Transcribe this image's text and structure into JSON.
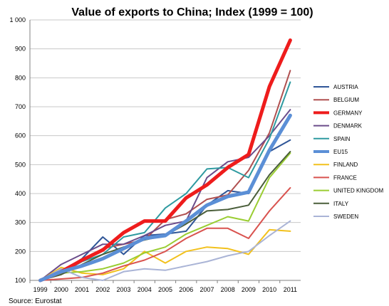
{
  "chart_data": {
    "type": "line",
    "title": "Value of exports to China; Index (1999 = 100)",
    "source": "Source: Eurostat",
    "x": [
      "1999",
      "2000",
      "2001",
      "2002",
      "2003",
      "2004",
      "2005",
      "2006",
      "2007",
      "2008",
      "2009",
      "2010",
      "2011"
    ],
    "ylim": [
      100,
      1000
    ],
    "yticks": [
      "100",
      "200",
      "300",
      "400",
      "500",
      "600",
      "700",
      "800",
      "900",
      "1 000"
    ],
    "grid": true,
    "legend_position": "right",
    "series": [
      {
        "name": "AUSTRIA",
        "color": "#2f5597",
        "width": 2,
        "values": [
          100,
          130,
          175,
          250,
          190,
          255,
          260,
          270,
          360,
          410,
          400,
          545,
          585
        ]
      },
      {
        "name": "BELGIUM",
        "color": "#b05050",
        "width": 2,
        "values": [
          100,
          135,
          170,
          210,
          225,
          240,
          310,
          330,
          380,
          395,
          480,
          610,
          825
        ]
      },
      {
        "name": "GERMANY",
        "color": "#ee1c1c",
        "width": 5,
        "values": [
          100,
          130,
          170,
          205,
          265,
          305,
          305,
          385,
          430,
          490,
          535,
          770,
          930
        ]
      },
      {
        "name": "DENMARK",
        "color": "#6b4c8a",
        "width": 2,
        "values": [
          100,
          155,
          190,
          225,
          225,
          255,
          290,
          305,
          455,
          510,
          525,
          600,
          690
        ]
      },
      {
        "name": "SPAIN",
        "color": "#2e9aa0",
        "width": 2,
        "values": [
          100,
          125,
          165,
          190,
          250,
          265,
          350,
          400,
          485,
          490,
          455,
          590,
          785
        ]
      },
      {
        "name": "EU15",
        "color": "#5b8fd6",
        "width": 5,
        "values": [
          100,
          130,
          150,
          175,
          210,
          245,
          255,
          305,
          360,
          390,
          405,
          550,
          670
        ]
      },
      {
        "name": "FINLAND",
        "color": "#f2c11d",
        "width": 2,
        "values": [
          100,
          145,
          125,
          120,
          140,
          200,
          160,
          200,
          215,
          210,
          190,
          275,
          270
        ]
      },
      {
        "name": "FRANCE",
        "color": "#d9534f",
        "width": 2,
        "values": [
          100,
          105,
          110,
          125,
          150,
          170,
          200,
          245,
          280,
          280,
          245,
          340,
          420
        ]
      },
      {
        "name": "UNITED KINGDOM",
        "color": "#9acd32",
        "width": 2,
        "values": [
          100,
          125,
          130,
          140,
          160,
          195,
          215,
          260,
          290,
          320,
          305,
          455,
          540
        ]
      },
      {
        "name": "ITALY",
        "color": "#4a5e3a",
        "width": 2,
        "values": [
          100,
          120,
          155,
          190,
          215,
          240,
          255,
          295,
          340,
          345,
          360,
          465,
          545
        ]
      },
      {
        "name": "SWEDEN",
        "color": "#aab4d6",
        "width": 2,
        "values": [
          100,
          140,
          110,
          100,
          130,
          140,
          135,
          150,
          165,
          185,
          200,
          255,
          305
        ]
      }
    ]
  }
}
